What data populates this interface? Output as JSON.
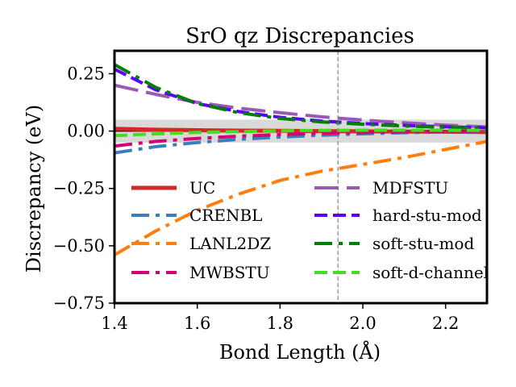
{
  "chart_data": {
    "type": "line",
    "title": "SrO qz Discrepancies",
    "xlabel": "Bond Length (Å)",
    "ylabel": "Discrepancy (eV)",
    "xlim": [
      1.4,
      2.3
    ],
    "ylim": [
      -0.75,
      0.35
    ],
    "x_ticks": [
      1.4,
      1.6,
      1.8,
      2.0,
      2.2
    ],
    "x_tick_labels": [
      "1.4",
      "1.6",
      "1.8",
      "2.0",
      "2.2"
    ],
    "y_ticks": [
      0.25,
      0.0,
      -0.25,
      -0.5,
      -0.75
    ],
    "y_tick_labels": [
      "0.25",
      "0.00",
      "−0.25",
      "−0.50",
      "−0.75"
    ],
    "grid": false,
    "legend_placement": "lower-center",
    "reference_band": [
      -0.05,
      0.05
    ],
    "reference_line_y": 0.0,
    "vertical_marker_x": 1.94,
    "x": [
      1.4,
      1.5,
      1.6,
      1.7,
      1.8,
      1.9,
      2.0,
      2.1,
      2.2,
      2.3
    ],
    "series": [
      {
        "name": "UC",
        "color": "#d62728",
        "dash": "solid",
        "values": [
          0.01,
          0.006,
          0.004,
          0.002,
          0.001,
          0.0,
          -0.001,
          -0.002,
          -0.003,
          -0.004
        ]
      },
      {
        "name": "CRENBL",
        "color": "#3a7dbf",
        "dash": "dashdot",
        "values": [
          -0.095,
          -0.068,
          -0.05,
          -0.036,
          -0.026,
          -0.018,
          -0.012,
          -0.007,
          -0.004,
          -0.002
        ]
      },
      {
        "name": "LANL2DZ",
        "color": "#ff7f0e",
        "dash": "dashdot",
        "values": [
          -0.54,
          -0.435,
          -0.345,
          -0.275,
          -0.215,
          -0.175,
          -0.145,
          -0.115,
          -0.08,
          -0.045
        ]
      },
      {
        "name": "MWBSTU",
        "color": "#d6006f",
        "dash": "dashdot",
        "values": [
          -0.065,
          -0.045,
          -0.032,
          -0.022,
          -0.015,
          -0.01,
          -0.006,
          -0.003,
          -0.001,
          0.0
        ]
      },
      {
        "name": "MDFSTU",
        "color": "#9b59b6",
        "dash": "longdash",
        "values": [
          0.2,
          0.16,
          0.125,
          0.1,
          0.08,
          0.062,
          0.048,
          0.036,
          0.026,
          0.018
        ]
      },
      {
        "name": "hard-stu-mod",
        "color": "#5b00ff",
        "dash": "dashed",
        "values": [
          0.27,
          0.18,
          0.12,
          0.085,
          0.06,
          0.044,
          0.033,
          0.025,
          0.019,
          0.014
        ]
      },
      {
        "name": "soft-stu-mod",
        "color": "#007f00",
        "dash": "dashdot",
        "values": [
          0.29,
          0.19,
          0.12,
          0.08,
          0.055,
          0.04,
          0.03,
          0.022,
          0.016,
          0.012
        ]
      },
      {
        "name": "soft-d-channel",
        "color": "#44dd22",
        "dash": "dashed",
        "values": [
          -0.02,
          -0.012,
          -0.006,
          -0.002,
          0.001,
          0.003,
          0.004,
          0.004,
          0.004,
          0.003
        ]
      }
    ]
  }
}
